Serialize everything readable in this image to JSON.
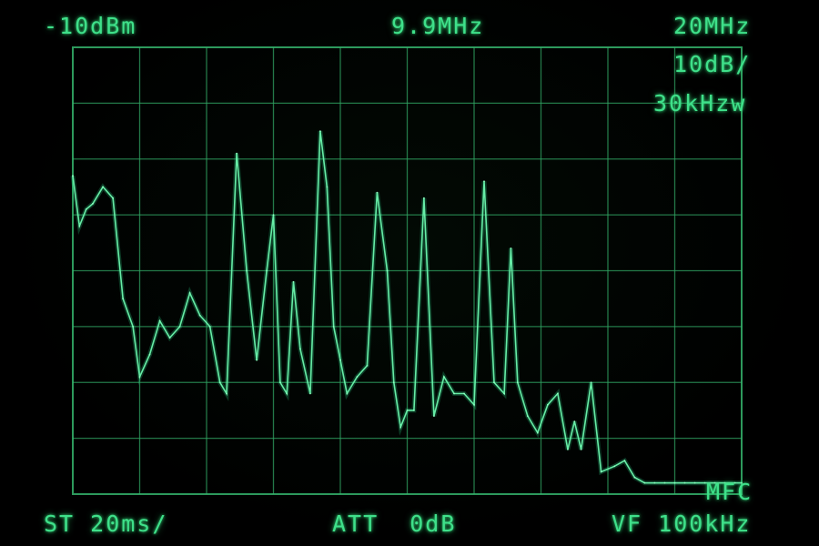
{
  "top_bar": {
    "ref_level": "-10dBm",
    "center_freq": "9.9MHz",
    "span": "20MHz",
    "scale": "10dB/",
    "rbw": "30kHzw"
  },
  "bottom_bar": {
    "sweep_time": "ST 20ms/",
    "attenuation": "ATT  0dB",
    "video_filter": "VF 100kHz"
  },
  "marker": {
    "label": "MFC"
  },
  "display": {
    "phosphor_color": "#3fe08a",
    "grid_color": "#2fa060",
    "background": "#000000",
    "divisions_x": 10,
    "divisions_y": 8
  },
  "chart_data": {
    "type": "line",
    "title": "",
    "xlabel": "",
    "ylabel": "",
    "xlim": [
      0,
      10
    ],
    "ylim": [
      -90,
      -10
    ],
    "x_units": "div",
    "y_units": "dBm",
    "series": [
      {
        "x": [
          0.0,
          0.1,
          0.2,
          0.3,
          0.45,
          0.6,
          0.75,
          0.9,
          1.0,
          1.15,
          1.3,
          1.45,
          1.6,
          1.75,
          1.9,
          2.05,
          2.2,
          2.3,
          2.45,
          2.6,
          2.75,
          2.9,
          3.0,
          3.1,
          3.2,
          3.3,
          3.4,
          3.55,
          3.7,
          3.8,
          3.9,
          4.0,
          4.1,
          4.25,
          4.4,
          4.55,
          4.7,
          4.8,
          4.9,
          5.0,
          5.1,
          5.25,
          5.4,
          5.55,
          5.7,
          5.85,
          6.0,
          6.15,
          6.3,
          6.45,
          6.55,
          6.65,
          6.8,
          6.95,
          7.1,
          7.25,
          7.4,
          7.5,
          7.6,
          7.75,
          7.9,
          8.1,
          8.25,
          8.4,
          8.55,
          8.7,
          8.85,
          9.0,
          9.15,
          9.3,
          9.45,
          9.6,
          9.75,
          9.9,
          10.0
        ],
        "y": [
          -33,
          -42,
          -39,
          -38,
          -35,
          -37,
          -55,
          -60,
          -69,
          -65,
          -59,
          -62,
          -60,
          -54,
          -58,
          -60,
          -70,
          -72,
          -29,
          -50,
          -66,
          -50,
          -40,
          -70,
          -72,
          -52,
          -64,
          -72,
          -25,
          -35,
          -60,
          -66,
          -72,
          -69,
          -67,
          -36,
          -50,
          -70,
          -78,
          -75,
          -75,
          -37,
          -76,
          -69,
          -72,
          -72,
          -74,
          -34,
          -70,
          -72,
          -46,
          -70,
          -76,
          -79,
          -74,
          -72,
          -82,
          -77,
          -82,
          -70,
          -86,
          -85,
          -84,
          -87,
          -88,
          -88,
          -88,
          -88,
          -88,
          -88,
          -88,
          -88,
          -88,
          -88,
          -88
        ]
      }
    ],
    "grid": true,
    "legend": "none"
  }
}
